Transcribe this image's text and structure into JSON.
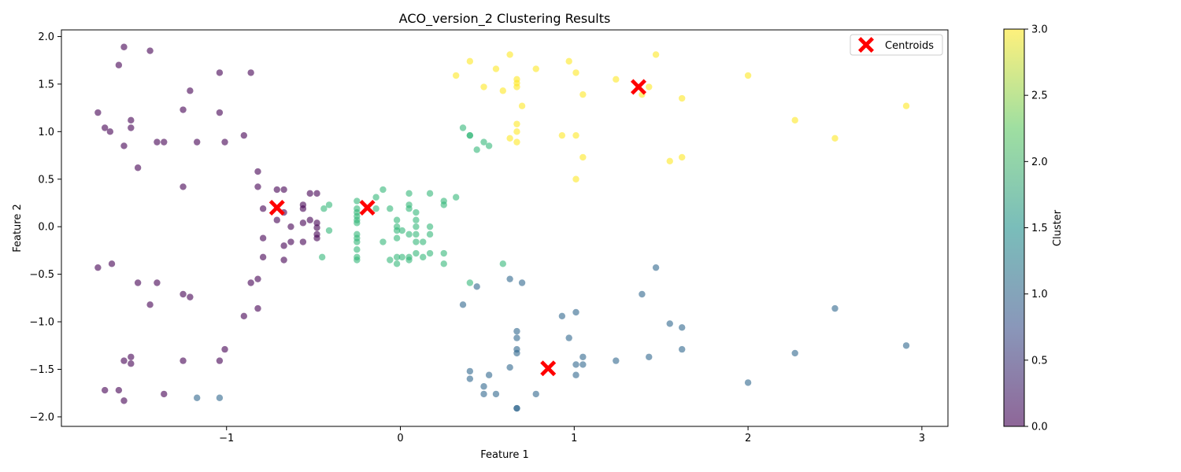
{
  "chart_data": {
    "type": "scatter",
    "title": "ACO_version_2 Clustering Results",
    "xlabel": "Feature 1",
    "ylabel": "Feature 2",
    "xlim": [
      -1.95,
      3.15
    ],
    "ylim": [
      -2.1,
      2.07
    ],
    "xticks": [
      -1,
      0,
      1,
      2,
      3
    ],
    "yticks": [
      -2.0,
      -1.5,
      -1.0,
      -0.5,
      0.0,
      0.5,
      1.0,
      1.5,
      2.0
    ],
    "xtick_labels": [
      "−1",
      "0",
      "1",
      "2",
      "3"
    ],
    "ytick_labels": [
      "−2.0",
      "−1.5",
      "−1.0",
      "−0.5",
      "0.0",
      "0.5",
      "1.0",
      "1.5",
      "2.0"
    ],
    "grid": false,
    "legend": {
      "position": "top-right",
      "entries": [
        "Centroids"
      ]
    },
    "colorbar": {
      "label": "Cluster",
      "range": [
        0.0,
        3.0
      ],
      "ticks": [
        0.0,
        0.5,
        1.0,
        1.5,
        2.0,
        2.5,
        3.0
      ],
      "tick_labels": [
        "0.0",
        "0.5",
        "1.0",
        "1.5",
        "2.0",
        "2.5",
        "3.0"
      ],
      "colormap": [
        "#440154",
        "#3b528b",
        "#21918c",
        "#5ec962",
        "#fde725"
      ]
    },
    "cluster_colors": [
      "#440154",
      "#31688e",
      "#35b779",
      "#fde725"
    ],
    "point_opacity": 0.6,
    "centroid_color": "#ff0000",
    "series": [
      {
        "cluster": 0,
        "points": [
          [
            -1.59,
            1.89
          ],
          [
            -1.44,
            1.85
          ],
          [
            -1.62,
            1.7
          ],
          [
            -1.04,
            1.62
          ],
          [
            -0.86,
            1.62
          ],
          [
            -1.21,
            1.43
          ],
          [
            -1.74,
            1.2
          ],
          [
            -1.25,
            1.23
          ],
          [
            -1.04,
            1.2
          ],
          [
            -1.55,
            1.12
          ],
          [
            -1.7,
            1.04
          ],
          [
            -1.55,
            1.04
          ],
          [
            -1.67,
            1.0
          ],
          [
            -0.9,
            0.96
          ],
          [
            -1.59,
            0.85
          ],
          [
            -1.4,
            0.89
          ],
          [
            -1.36,
            0.89
          ],
          [
            -1.17,
            0.89
          ],
          [
            -1.01,
            0.89
          ],
          [
            -1.51,
            0.62
          ],
          [
            -0.82,
            0.58
          ],
          [
            -1.25,
            0.42
          ],
          [
            -0.82,
            0.42
          ],
          [
            -0.71,
            0.39
          ],
          [
            -0.67,
            0.39
          ],
          [
            -0.52,
            0.35
          ],
          [
            -0.48,
            0.35
          ],
          [
            -0.56,
            0.23
          ],
          [
            -0.56,
            0.19
          ],
          [
            -0.79,
            0.19
          ],
          [
            -0.67,
            0.15
          ],
          [
            -0.71,
            0.07
          ],
          [
            -0.52,
            0.07
          ],
          [
            -0.56,
            0.04
          ],
          [
            -0.48,
            0.04
          ],
          [
            -0.63,
            0.0
          ],
          [
            -0.48,
            -0.01
          ],
          [
            -0.48,
            -0.08
          ],
          [
            -0.48,
            -0.12
          ],
          [
            -0.79,
            -0.12
          ],
          [
            -0.63,
            -0.16
          ],
          [
            -0.56,
            -0.16
          ],
          [
            -0.67,
            -0.2
          ],
          [
            -0.79,
            -0.32
          ],
          [
            -0.67,
            -0.35
          ],
          [
            -1.66,
            -0.39
          ],
          [
            -1.74,
            -0.43
          ],
          [
            -0.82,
            -0.55
          ],
          [
            -0.86,
            -0.59
          ],
          [
            -1.51,
            -0.59
          ],
          [
            -1.4,
            -0.59
          ],
          [
            -1.25,
            -0.71
          ],
          [
            -1.21,
            -0.74
          ],
          [
            -1.44,
            -0.82
          ],
          [
            -0.82,
            -0.86
          ],
          [
            -0.9,
            -0.94
          ],
          [
            -1.01,
            -1.29
          ],
          [
            -1.55,
            -1.37
          ],
          [
            -1.59,
            -1.41
          ],
          [
            -1.25,
            -1.41
          ],
          [
            -1.04,
            -1.41
          ],
          [
            -1.55,
            -1.44
          ],
          [
            -1.7,
            -1.72
          ],
          [
            -1.62,
            -1.72
          ],
          [
            -1.36,
            -1.76
          ],
          [
            -1.59,
            -1.83
          ]
        ]
      },
      {
        "cluster": 1,
        "points": [
          [
            1.47,
            -0.43
          ],
          [
            0.63,
            -0.55
          ],
          [
            0.7,
            -0.59
          ],
          [
            0.44,
            -0.63
          ],
          [
            1.39,
            -0.71
          ],
          [
            0.36,
            -0.82
          ],
          [
            2.5,
            -0.86
          ],
          [
            1.01,
            -0.9
          ],
          [
            0.93,
            -0.94
          ],
          [
            1.55,
            -1.02
          ],
          [
            1.62,
            -1.06
          ],
          [
            0.67,
            -1.1
          ],
          [
            0.67,
            -1.17
          ],
          [
            0.97,
            -1.17
          ],
          [
            2.91,
            -1.25
          ],
          [
            0.67,
            -1.29
          ],
          [
            1.62,
            -1.29
          ],
          [
            0.67,
            -1.33
          ],
          [
            2.27,
            -1.33
          ],
          [
            1.05,
            -1.37
          ],
          [
            1.43,
            -1.37
          ],
          [
            1.24,
            -1.41
          ],
          [
            1.01,
            -1.45
          ],
          [
            1.05,
            -1.45
          ],
          [
            0.63,
            -1.48
          ],
          [
            0.4,
            -1.52
          ],
          [
            0.51,
            -1.56
          ],
          [
            1.01,
            -1.56
          ],
          [
            0.4,
            -1.6
          ],
          [
            2.0,
            -1.64
          ],
          [
            0.48,
            -1.68
          ],
          [
            0.48,
            -1.76
          ],
          [
            0.55,
            -1.76
          ],
          [
            0.78,
            -1.76
          ],
          [
            -1.17,
            -1.8
          ],
          [
            -1.04,
            -1.8
          ],
          [
            0.67,
            -1.91
          ],
          [
            0.67,
            -1.91
          ]
        ]
      },
      {
        "cluster": 2,
        "points": [
          [
            0.36,
            1.04
          ],
          [
            0.4,
            0.96
          ],
          [
            0.4,
            0.96
          ],
          [
            0.48,
            0.89
          ],
          [
            0.51,
            0.85
          ],
          [
            0.44,
            0.81
          ],
          [
            -0.1,
            0.39
          ],
          [
            0.05,
            0.35
          ],
          [
            0.17,
            0.35
          ],
          [
            0.32,
            0.31
          ],
          [
            -0.14,
            0.31
          ],
          [
            -0.25,
            0.27
          ],
          [
            0.25,
            0.27
          ],
          [
            -0.41,
            0.23
          ],
          [
            0.05,
            0.23
          ],
          [
            0.25,
            0.23
          ],
          [
            -0.25,
            0.19
          ],
          [
            -0.14,
            0.19
          ],
          [
            -0.06,
            0.19
          ],
          [
            -0.44,
            0.19
          ],
          [
            0.05,
            0.19
          ],
          [
            0.09,
            0.15
          ],
          [
            -0.25,
            0.15
          ],
          [
            -0.25,
            0.11
          ],
          [
            -0.25,
            0.07
          ],
          [
            -0.02,
            0.07
          ],
          [
            0.09,
            0.07
          ],
          [
            -0.25,
            0.04
          ],
          [
            -0.02,
            0.0
          ],
          [
            0.09,
            0.0
          ],
          [
            0.17,
            0.0
          ],
          [
            -0.41,
            -0.04
          ],
          [
            -0.02,
            -0.04
          ],
          [
            0.01,
            -0.04
          ],
          [
            -0.25,
            -0.08
          ],
          [
            0.05,
            -0.08
          ],
          [
            0.09,
            -0.08
          ],
          [
            0.17,
            -0.08
          ],
          [
            -0.25,
            -0.12
          ],
          [
            -0.02,
            -0.12
          ],
          [
            -0.25,
            -0.16
          ],
          [
            -0.1,
            -0.16
          ],
          [
            0.09,
            -0.16
          ],
          [
            0.13,
            -0.16
          ],
          [
            -0.25,
            -0.24
          ],
          [
            0.09,
            -0.28
          ],
          [
            0.17,
            -0.28
          ],
          [
            0.25,
            -0.28
          ],
          [
            -0.45,
            -0.32
          ],
          [
            -0.25,
            -0.32
          ],
          [
            -0.02,
            -0.32
          ],
          [
            0.01,
            -0.32
          ],
          [
            0.05,
            -0.32
          ],
          [
            0.13,
            -0.32
          ],
          [
            -0.25,
            -0.35
          ],
          [
            -0.06,
            -0.35
          ],
          [
            0.05,
            -0.35
          ],
          [
            -0.02,
            -0.39
          ],
          [
            0.25,
            -0.39
          ],
          [
            0.59,
            -0.39
          ],
          [
            0.4,
            -0.59
          ]
        ]
      },
      {
        "cluster": 3,
        "points": [
          [
            0.63,
            1.81
          ],
          [
            1.47,
            1.81
          ],
          [
            0.4,
            1.74
          ],
          [
            0.97,
            1.74
          ],
          [
            0.55,
            1.66
          ],
          [
            0.78,
            1.66
          ],
          [
            1.01,
            1.62
          ],
          [
            0.32,
            1.59
          ],
          [
            2.0,
            1.59
          ],
          [
            0.67,
            1.55
          ],
          [
            1.24,
            1.55
          ],
          [
            0.67,
            1.51
          ],
          [
            0.67,
            1.47
          ],
          [
            0.48,
            1.47
          ],
          [
            1.43,
            1.47
          ],
          [
            0.59,
            1.43
          ],
          [
            1.05,
            1.39
          ],
          [
            1.39,
            1.39
          ],
          [
            1.62,
            1.35
          ],
          [
            0.7,
            1.27
          ],
          [
            2.91,
            1.27
          ],
          [
            2.27,
            1.12
          ],
          [
            0.67,
            1.08
          ],
          [
            0.67,
            1.0
          ],
          [
            0.93,
            0.96
          ],
          [
            1.01,
            0.96
          ],
          [
            0.63,
            0.93
          ],
          [
            2.5,
            0.93
          ],
          [
            0.67,
            0.89
          ],
          [
            1.05,
            0.73
          ],
          [
            1.62,
            0.73
          ],
          [
            1.55,
            0.69
          ],
          [
            1.01,
            0.5
          ]
        ]
      }
    ],
    "centroids": [
      [
        -0.71,
        0.2
      ],
      [
        -0.19,
        0.2
      ],
      [
        1.37,
        1.47
      ],
      [
        0.85,
        -1.49
      ]
    ]
  }
}
